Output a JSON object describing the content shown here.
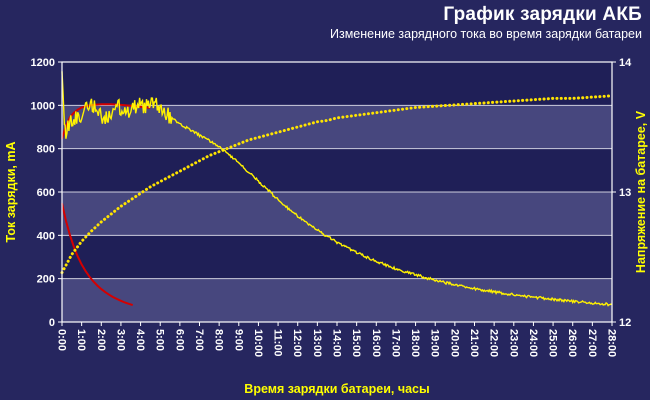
{
  "header": {
    "title": "График зарядки АКБ",
    "subtitle": "Изменение зарядного тока во время зарядки батареи"
  },
  "chart_data": {
    "type": "line",
    "title": "График зарядки АКБ",
    "xlabel": "Время зарядки батареи, часы",
    "ylabel_left": "Ток зарядки, mA",
    "ylabel_right": "Напряжение на батарее, V",
    "x_range_hours": [
      0,
      28
    ],
    "x_tick_labels": [
      "0:00",
      "1:00",
      "2:00",
      "3:00",
      "4:00",
      "5:00",
      "6:00",
      "7:00",
      "8:00",
      "9:00",
      "10:00",
      "11:00",
      "12:00",
      "13:00",
      "14:00",
      "15:00",
      "16:00",
      "17:00",
      "18:00",
      "19:00",
      "20:00",
      "21:00",
      "22:00",
      "23:00",
      "24:00",
      "25:00",
      "26:00",
      "27:00",
      "28:00"
    ],
    "ylim_left": [
      0,
      1200
    ],
    "yticks_left": [
      0,
      200,
      400,
      600,
      800,
      1000,
      1200
    ],
    "ylim_right": [
      12,
      14
    ],
    "yticks_right": [
      12,
      13,
      14
    ],
    "grid": "horizontal",
    "legend": "none",
    "colors": {
      "background": "#26265f",
      "band_light": "#47477e",
      "band_dark": "#1f1f57",
      "grid": "#e8e8f2",
      "frame": "#ffffff",
      "text": "#ffffff",
      "axis_title": "#ffff00",
      "current": "#fff200",
      "voltage": "#ffe400",
      "red": "#d40000"
    },
    "series": [
      {
        "name": "current-reference-red-rise",
        "axis": "left",
        "color": "#d40000",
        "width": 2,
        "points": [
          [
            0,
            845
          ],
          [
            0.2,
            905
          ],
          [
            0.4,
            945
          ],
          [
            0.6,
            965
          ],
          [
            0.8,
            980
          ],
          [
            1,
            990
          ],
          [
            1.3,
            998
          ],
          [
            1.6,
            1002
          ],
          [
            2,
            1005
          ],
          [
            2.5,
            1005
          ],
          [
            3,
            1002
          ],
          [
            3.5,
            998
          ],
          [
            4,
            993
          ],
          [
            4.5,
            988
          ]
        ]
      },
      {
        "name": "current-reference-red-decay",
        "axis": "left",
        "color": "#d40000",
        "width": 2,
        "points": [
          [
            0,
            548
          ],
          [
            0.2,
            468
          ],
          [
            0.4,
            402
          ],
          [
            0.6,
            348
          ],
          [
            0.8,
            303
          ],
          [
            1,
            266
          ],
          [
            1.2,
            235
          ],
          [
            1.4,
            209
          ],
          [
            1.6,
            187
          ],
          [
            1.8,
            168
          ],
          [
            2,
            152
          ],
          [
            2.2,
            138
          ],
          [
            2.4,
            126
          ],
          [
            2.6,
            115
          ],
          [
            2.8,
            106
          ],
          [
            3,
            98
          ],
          [
            3.2,
            90
          ],
          [
            3.4,
            84
          ],
          [
            3.6,
            78
          ]
        ]
      },
      {
        "name": "battery-voltage",
        "axis": "right",
        "color": "#ffe400",
        "width": 3,
        "dash": "0.1 4.2",
        "points": [
          [
            0,
            12.38
          ],
          [
            0.5,
            12.52
          ],
          [
            1,
            12.62
          ],
          [
            1.5,
            12.7
          ],
          [
            2,
            12.77
          ],
          [
            2.5,
            12.83
          ],
          [
            3,
            12.89
          ],
          [
            3.5,
            12.94
          ],
          [
            4,
            12.99
          ],
          [
            4.5,
            13.04
          ],
          [
            5,
            13.08
          ],
          [
            5.5,
            13.12
          ],
          [
            6,
            13.16
          ],
          [
            6.5,
            13.2
          ],
          [
            7,
            13.24
          ],
          [
            7.5,
            13.28
          ],
          [
            8,
            13.31
          ],
          [
            8.5,
            13.34
          ],
          [
            9,
            13.37
          ],
          [
            9.5,
            13.4
          ],
          [
            10,
            13.42
          ],
          [
            10.5,
            13.44
          ],
          [
            11,
            13.46
          ],
          [
            11.5,
            13.48
          ],
          [
            12,
            13.5
          ],
          [
            12.5,
            13.52
          ],
          [
            13,
            13.54
          ],
          [
            13.5,
            13.55
          ],
          [
            14,
            13.57
          ],
          [
            14.5,
            13.58
          ],
          [
            15,
            13.59
          ],
          [
            15.5,
            13.6
          ],
          [
            16,
            13.61
          ],
          [
            16.5,
            13.62
          ],
          [
            17,
            13.63
          ],
          [
            17.5,
            13.64
          ],
          [
            18,
            13.65
          ],
          [
            19,
            13.66
          ],
          [
            20,
            13.67
          ],
          [
            21,
            13.68
          ],
          [
            22,
            13.69
          ],
          [
            23,
            13.7
          ],
          [
            24,
            13.71
          ],
          [
            25,
            13.72
          ],
          [
            26,
            13.72
          ],
          [
            27,
            13.73
          ],
          [
            28,
            13.74
          ]
        ]
      },
      {
        "name": "charging-current",
        "axis": "left",
        "color": "#fff200",
        "width": 1.4,
        "noise": {
          "until_x": 5.6,
          "amp": 38,
          "amp_after": 6
        },
        "points": [
          [
            0,
            1185
          ],
          [
            0.05,
            1060
          ],
          [
            0.12,
            900
          ],
          [
            0.2,
            870
          ],
          [
            0.35,
            905
          ],
          [
            0.5,
            930
          ],
          [
            0.7,
            945
          ],
          [
            0.9,
            955
          ],
          [
            1.1,
            965
          ],
          [
            1.3,
            985
          ],
          [
            1.6,
            1000
          ],
          [
            1.9,
            965
          ],
          [
            2.1,
            940
          ],
          [
            2.4,
            955
          ],
          [
            2.7,
            1000
          ],
          [
            3,
            990
          ],
          [
            3.3,
            965
          ],
          [
            3.6,
            985
          ],
          [
            3.9,
            1005
          ],
          [
            4.2,
            995
          ],
          [
            4.5,
            1015
          ],
          [
            4.8,
            1000
          ],
          [
            5,
            985
          ],
          [
            5.3,
            960
          ],
          [
            5.6,
            945
          ],
          [
            6,
            915
          ],
          [
            6.5,
            888
          ],
          [
            7,
            862
          ],
          [
            7.5,
            838
          ],
          [
            8,
            808
          ],
          [
            8.5,
            772
          ],
          [
            9,
            733
          ],
          [
            9.5,
            692
          ],
          [
            10,
            650
          ],
          [
            10.5,
            607
          ],
          [
            11,
            565
          ],
          [
            11.5,
            525
          ],
          [
            12,
            488
          ],
          [
            12.5,
            455
          ],
          [
            13,
            424
          ],
          [
            13.5,
            395
          ],
          [
            14,
            368
          ],
          [
            14.5,
            343
          ],
          [
            15,
            320
          ],
          [
            15.5,
            299
          ],
          [
            16,
            280
          ],
          [
            16.5,
            262
          ],
          [
            17,
            246
          ],
          [
            17.5,
            231
          ],
          [
            18,
            218
          ],
          [
            18.5,
            205
          ],
          [
            19,
            193
          ],
          [
            19.5,
            182
          ],
          [
            20,
            172
          ],
          [
            20.5,
            163
          ],
          [
            21,
            154
          ],
          [
            21.5,
            146
          ],
          [
            22,
            139
          ],
          [
            22.5,
            132
          ],
          [
            23,
            126
          ],
          [
            23.5,
            120
          ],
          [
            24,
            115
          ],
          [
            24.5,
            110
          ],
          [
            25,
            105
          ],
          [
            25.5,
            100
          ],
          [
            26,
            96
          ],
          [
            26.5,
            92
          ],
          [
            27,
            88
          ],
          [
            27.5,
            84
          ],
          [
            28,
            80
          ]
        ]
      }
    ]
  }
}
